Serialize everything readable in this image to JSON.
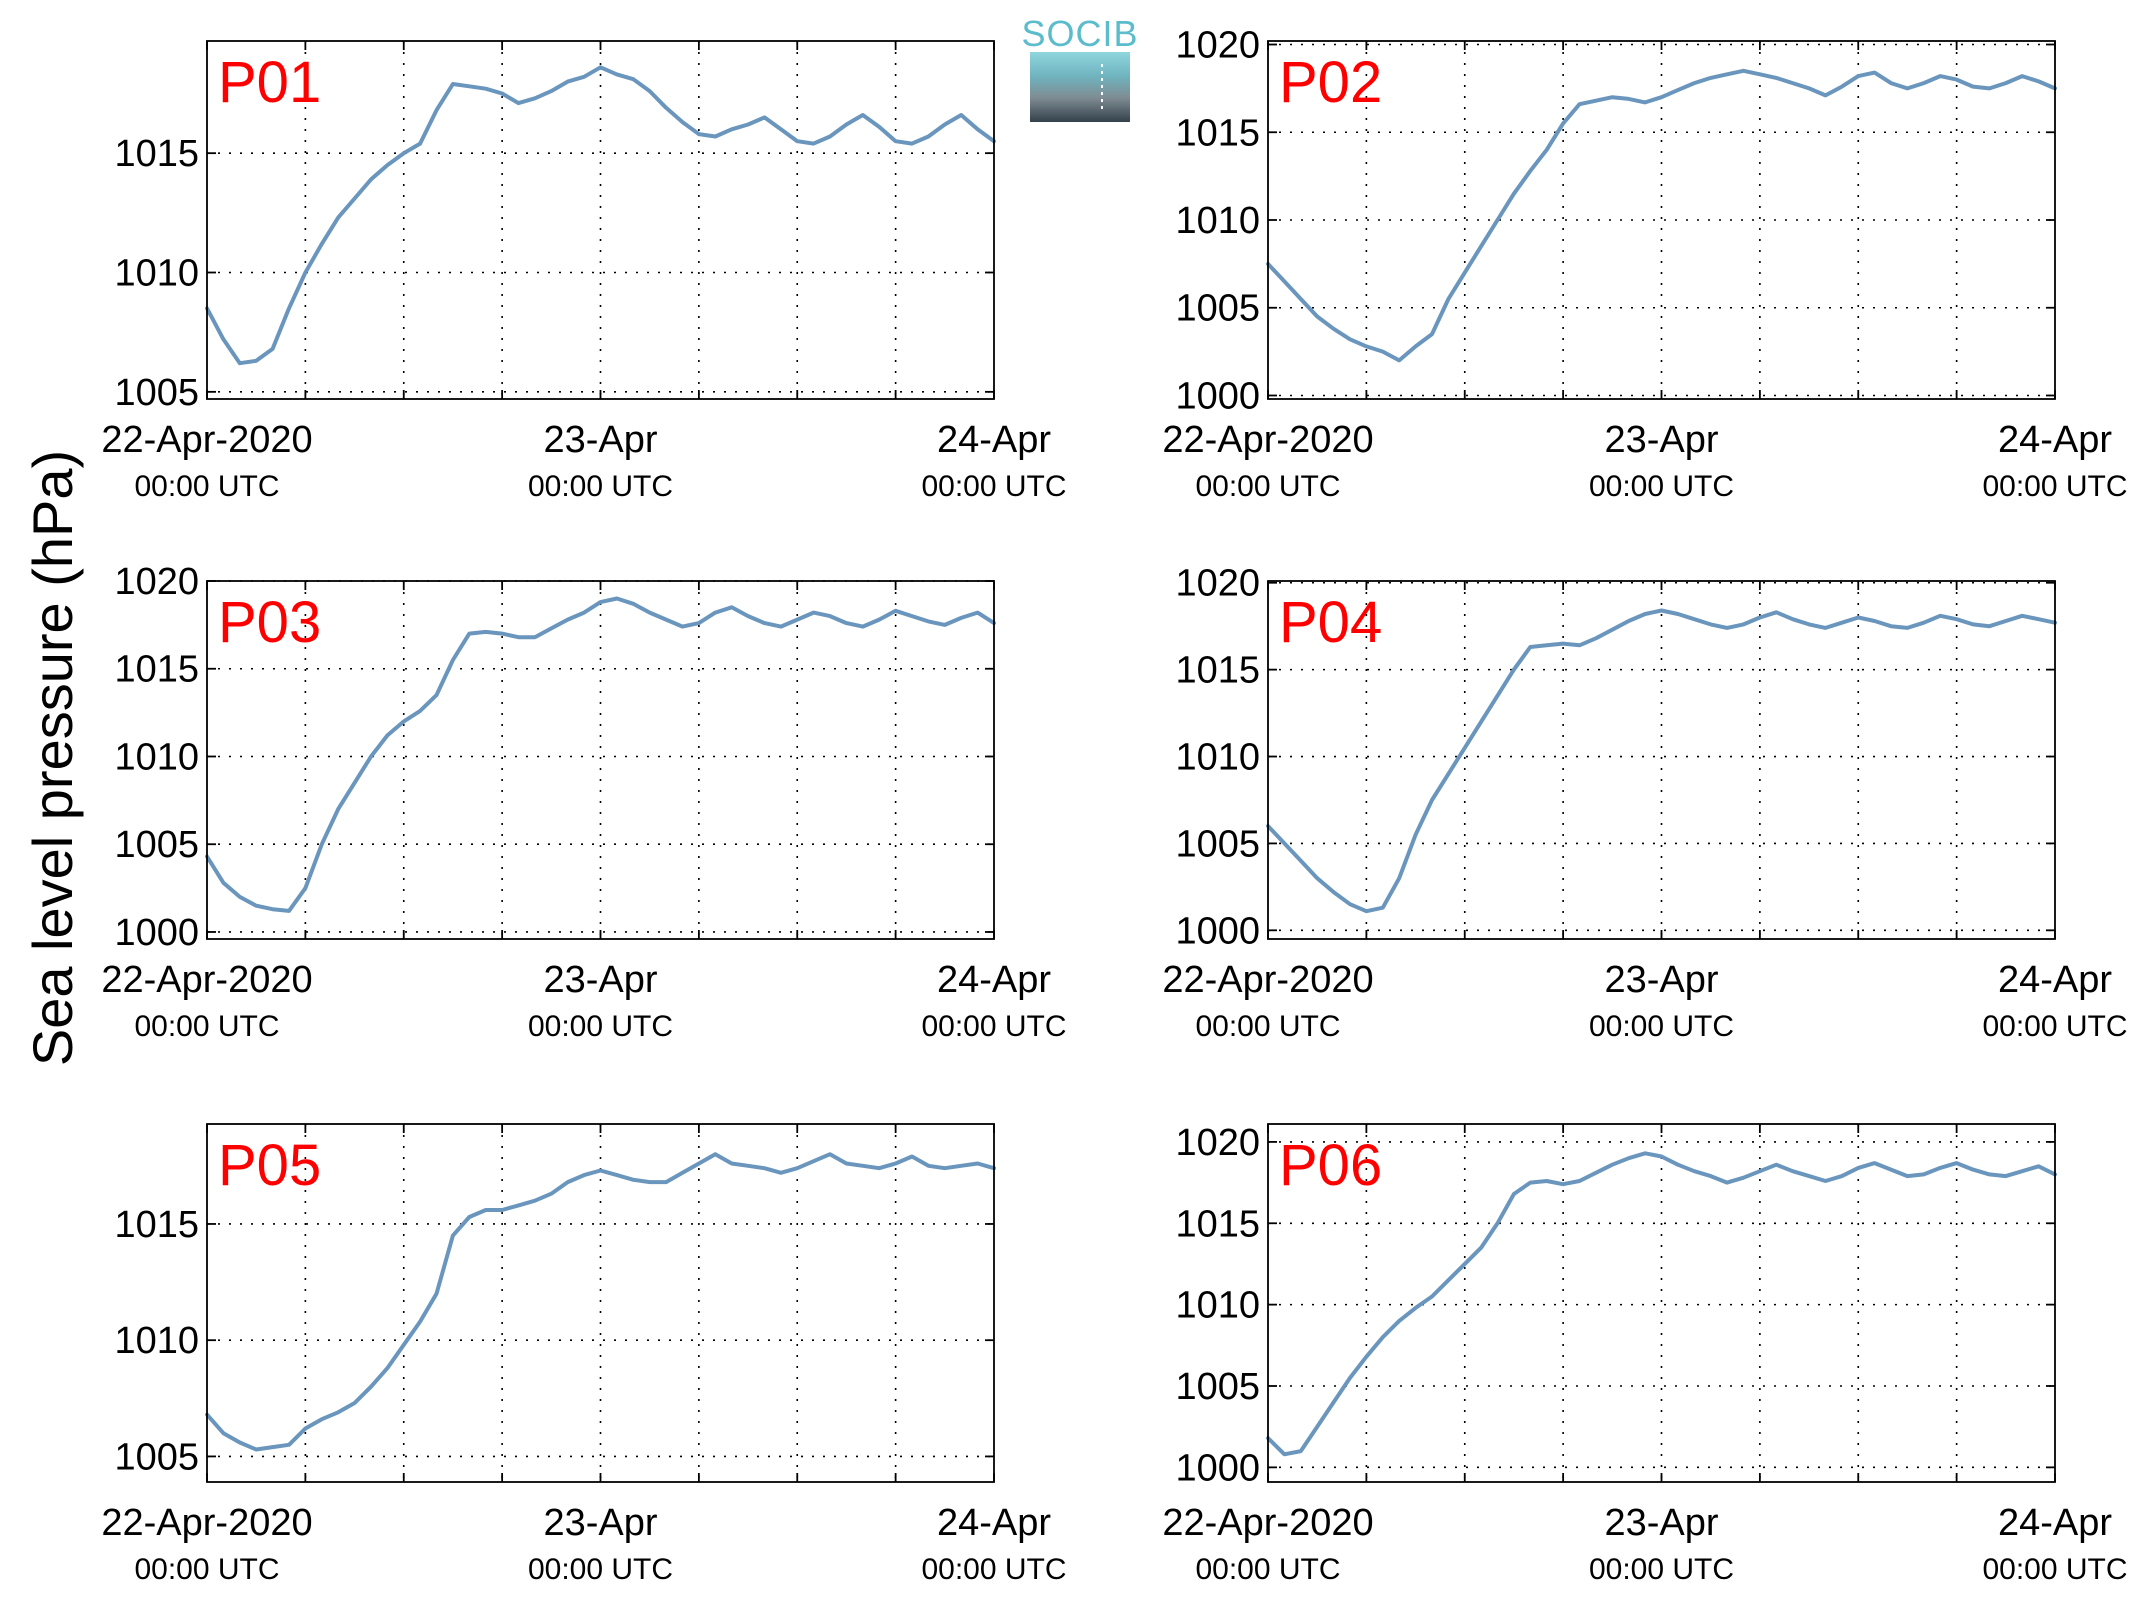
{
  "figure": {
    "ylabel": "Sea level pressure (hPa)",
    "logo_text": "SOCIB",
    "line_color": "#6a96bd",
    "label_color": "#ff0000"
  },
  "chart_data": [
    {
      "type": "line",
      "label": "P01",
      "x_ticks": [
        {
          "value": 0,
          "date": "22-Apr-2020",
          "time": "00:00 UTC"
        },
        {
          "value": 24,
          "date": "23-Apr",
          "time": "00:00 UTC"
        },
        {
          "value": 48,
          "date": "24-Apr",
          "time": "00:00 UTC"
        }
      ],
      "xlim": [
        0,
        48
      ],
      "ylim": [
        1004.7,
        1019.7
      ],
      "yticks": [
        1005,
        1010,
        1015
      ],
      "grid": true,
      "series": [
        {
          "x": [
            0,
            1,
            2,
            3,
            4,
            5,
            6,
            7,
            8,
            9,
            10,
            11,
            12,
            13,
            14,
            15,
            16,
            17,
            18,
            19,
            20,
            21,
            22,
            23,
            24,
            25,
            26,
            27,
            28,
            29,
            30,
            31,
            32,
            33,
            34,
            35,
            36,
            37,
            38,
            39,
            40,
            41,
            42,
            43,
            44,
            45,
            46,
            47,
            48
          ],
          "values": [
            1008.5,
            1007.2,
            1006.2,
            1006.3,
            1006.8,
            1008.5,
            1010.0,
            1011.2,
            1012.3,
            1013.1,
            1013.9,
            1014.5,
            1015.0,
            1015.4,
            1016.8,
            1017.9,
            1017.8,
            1017.7,
            1017.5,
            1017.1,
            1017.3,
            1017.6,
            1018.0,
            1018.2,
            1018.6,
            1018.3,
            1018.1,
            1017.6,
            1016.9,
            1016.3,
            1015.8,
            1015.7,
            1016.0,
            1016.2,
            1016.5,
            1016.0,
            1015.5,
            1015.4,
            1015.7,
            1016.2,
            1016.6,
            1016.1,
            1015.5,
            1015.4,
            1015.7,
            1016.2,
            1016.6,
            1016.0,
            1015.5
          ]
        }
      ]
    },
    {
      "type": "line",
      "label": "P02",
      "x_ticks": [
        {
          "value": 0,
          "date": "22-Apr-2020",
          "time": "00:00 UTC"
        },
        {
          "value": 24,
          "date": "23-Apr",
          "time": "00:00 UTC"
        },
        {
          "value": 48,
          "date": "24-Apr",
          "time": "00:00 UTC"
        }
      ],
      "xlim": [
        0,
        48
      ],
      "ylim": [
        999.8,
        1020.2
      ],
      "yticks": [
        1000,
        1005,
        1010,
        1015,
        1020
      ],
      "grid": true,
      "series": [
        {
          "x": [
            0,
            1,
            2,
            3,
            4,
            5,
            6,
            7,
            8,
            9,
            10,
            11,
            12,
            13,
            14,
            15,
            16,
            17,
            18,
            19,
            20,
            21,
            22,
            23,
            24,
            25,
            26,
            27,
            28,
            29,
            30,
            31,
            32,
            33,
            34,
            35,
            36,
            37,
            38,
            39,
            40,
            41,
            42,
            43,
            44,
            45,
            46,
            47,
            48
          ],
          "values": [
            1007.5,
            1006.5,
            1005.5,
            1004.5,
            1003.8,
            1003.2,
            1002.8,
            1002.5,
            1002.0,
            1002.8,
            1003.5,
            1005.5,
            1007.0,
            1008.5,
            1010.0,
            1011.5,
            1012.8,
            1014.0,
            1015.5,
            1016.6,
            1016.8,
            1017.0,
            1016.9,
            1016.7,
            1017.0,
            1017.4,
            1017.8,
            1018.1,
            1018.3,
            1018.5,
            1018.3,
            1018.1,
            1017.8,
            1017.5,
            1017.1,
            1017.6,
            1018.2,
            1018.4,
            1017.8,
            1017.5,
            1017.8,
            1018.2,
            1018.0,
            1017.6,
            1017.5,
            1017.8,
            1018.2,
            1017.9,
            1017.5
          ]
        }
      ]
    },
    {
      "type": "line",
      "label": "P03",
      "x_ticks": [
        {
          "value": 0,
          "date": "22-Apr-2020",
          "time": "00:00 UTC"
        },
        {
          "value": 24,
          "date": "23-Apr",
          "time": "00:00 UTC"
        },
        {
          "value": 48,
          "date": "24-Apr",
          "time": "00:00 UTC"
        }
      ],
      "xlim": [
        0,
        48
      ],
      "ylim": [
        999.6,
        1020.0
      ],
      "yticks": [
        1000,
        1005,
        1010,
        1015,
        1020
      ],
      "grid": true,
      "series": [
        {
          "x": [
            0,
            1,
            2,
            3,
            4,
            5,
            6,
            7,
            8,
            9,
            10,
            11,
            12,
            13,
            14,
            15,
            16,
            17,
            18,
            19,
            20,
            21,
            22,
            23,
            24,
            25,
            26,
            27,
            28,
            29,
            30,
            31,
            32,
            33,
            34,
            35,
            36,
            37,
            38,
            39,
            40,
            41,
            42,
            43,
            44,
            45,
            46,
            47,
            48
          ],
          "values": [
            1004.3,
            1002.8,
            1002.0,
            1001.5,
            1001.3,
            1001.2,
            1002.5,
            1005.0,
            1007.0,
            1008.5,
            1010.0,
            1011.2,
            1012.0,
            1012.6,
            1013.5,
            1015.5,
            1017.0,
            1017.1,
            1017.0,
            1016.8,
            1016.8,
            1017.3,
            1017.8,
            1018.2,
            1018.8,
            1019.0,
            1018.7,
            1018.2,
            1017.8,
            1017.4,
            1017.6,
            1018.2,
            1018.5,
            1018.0,
            1017.6,
            1017.4,
            1017.8,
            1018.2,
            1018.0,
            1017.6,
            1017.4,
            1017.8,
            1018.3,
            1018.0,
            1017.7,
            1017.5,
            1017.9,
            1018.2,
            1017.6
          ]
        }
      ]
    },
    {
      "type": "line",
      "label": "P04",
      "x_ticks": [
        {
          "value": 0,
          "date": "22-Apr-2020",
          "time": "00:00 UTC"
        },
        {
          "value": 24,
          "date": "23-Apr",
          "time": "00:00 UTC"
        },
        {
          "value": 48,
          "date": "24-Apr",
          "time": "00:00 UTC"
        }
      ],
      "xlim": [
        0,
        48
      ],
      "ylim": [
        999.5,
        1020.1
      ],
      "yticks": [
        1000,
        1005,
        1010,
        1015,
        1020
      ],
      "grid": true,
      "series": [
        {
          "x": [
            0,
            1,
            2,
            3,
            4,
            5,
            6,
            7,
            8,
            9,
            10,
            11,
            12,
            13,
            14,
            15,
            16,
            17,
            18,
            19,
            20,
            21,
            22,
            23,
            24,
            25,
            26,
            27,
            28,
            29,
            30,
            31,
            32,
            33,
            34,
            35,
            36,
            37,
            38,
            39,
            40,
            41,
            42,
            43,
            44,
            45,
            46,
            47,
            48
          ],
          "values": [
            1006.0,
            1005.0,
            1004.0,
            1003.0,
            1002.2,
            1001.5,
            1001.1,
            1001.3,
            1003.0,
            1005.5,
            1007.5,
            1009.0,
            1010.5,
            1012.0,
            1013.5,
            1015.0,
            1016.3,
            1016.4,
            1016.5,
            1016.4,
            1016.8,
            1017.3,
            1017.8,
            1018.2,
            1018.4,
            1018.2,
            1017.9,
            1017.6,
            1017.4,
            1017.6,
            1018.0,
            1018.3,
            1017.9,
            1017.6,
            1017.4,
            1017.7,
            1018.0,
            1017.8,
            1017.5,
            1017.4,
            1017.7,
            1018.1,
            1017.9,
            1017.6,
            1017.5,
            1017.8,
            1018.1,
            1017.9,
            1017.7
          ]
        }
      ]
    },
    {
      "type": "line",
      "label": "P05",
      "x_ticks": [
        {
          "value": 0,
          "date": "22-Apr-2020",
          "time": "00:00 UTC"
        },
        {
          "value": 24,
          "date": "23-Apr",
          "time": "00:00 UTC"
        },
        {
          "value": 48,
          "date": "24-Apr",
          "time": "00:00 UTC"
        }
      ],
      "xlim": [
        0,
        48
      ],
      "ylim": [
        1003.9,
        1019.3
      ],
      "yticks": [
        1005,
        1010,
        1015
      ],
      "grid": true,
      "series": [
        {
          "x": [
            0,
            1,
            2,
            3,
            4,
            5,
            6,
            7,
            8,
            9,
            10,
            11,
            12,
            13,
            14,
            15,
            16,
            17,
            18,
            19,
            20,
            21,
            22,
            23,
            24,
            25,
            26,
            27,
            28,
            29,
            30,
            31,
            32,
            33,
            34,
            35,
            36,
            37,
            38,
            39,
            40,
            41,
            42,
            43,
            44,
            45,
            46,
            47,
            48
          ],
          "values": [
            1006.8,
            1006.0,
            1005.6,
            1005.3,
            1005.4,
            1005.5,
            1006.2,
            1006.6,
            1006.9,
            1007.3,
            1008.0,
            1008.8,
            1009.8,
            1010.8,
            1012.0,
            1014.5,
            1015.3,
            1015.6,
            1015.6,
            1015.8,
            1016.0,
            1016.3,
            1016.8,
            1017.1,
            1017.3,
            1017.1,
            1016.9,
            1016.8,
            1016.8,
            1017.2,
            1017.6,
            1018.0,
            1017.6,
            1017.5,
            1017.4,
            1017.2,
            1017.4,
            1017.7,
            1018.0,
            1017.6,
            1017.5,
            1017.4,
            1017.6,
            1017.9,
            1017.5,
            1017.4,
            1017.5,
            1017.6,
            1017.4
          ]
        }
      ]
    },
    {
      "type": "line",
      "label": "P06",
      "x_ticks": [
        {
          "value": 0,
          "date": "22-Apr-2020",
          "time": "00:00 UTC"
        },
        {
          "value": 24,
          "date": "23-Apr",
          "time": "00:00 UTC"
        },
        {
          "value": 48,
          "date": "24-Apr",
          "time": "00:00 UTC"
        }
      ],
      "xlim": [
        0,
        48
      ],
      "ylim": [
        999.1,
        1021.1
      ],
      "yticks": [
        1000,
        1005,
        1010,
        1015,
        1020
      ],
      "grid": true,
      "series": [
        {
          "x": [
            0,
            1,
            2,
            3,
            4,
            5,
            6,
            7,
            8,
            9,
            10,
            11,
            12,
            13,
            14,
            15,
            16,
            17,
            18,
            19,
            20,
            21,
            22,
            23,
            24,
            25,
            26,
            27,
            28,
            29,
            30,
            31,
            32,
            33,
            34,
            35,
            36,
            37,
            38,
            39,
            40,
            41,
            42,
            43,
            44,
            45,
            46,
            47,
            48
          ],
          "values": [
            1001.8,
            1000.8,
            1001.0,
            1002.5,
            1004.0,
            1005.5,
            1006.8,
            1008.0,
            1009.0,
            1009.8,
            1010.5,
            1011.5,
            1012.5,
            1013.5,
            1015.0,
            1016.8,
            1017.5,
            1017.6,
            1017.4,
            1017.6,
            1018.1,
            1018.6,
            1019.0,
            1019.3,
            1019.1,
            1018.6,
            1018.2,
            1017.9,
            1017.5,
            1017.8,
            1018.2,
            1018.6,
            1018.2,
            1017.9,
            1017.6,
            1017.9,
            1018.4,
            1018.7,
            1018.3,
            1017.9,
            1018.0,
            1018.4,
            1018.7,
            1018.3,
            1018.0,
            1017.9,
            1018.2,
            1018.5,
            1018.0
          ]
        }
      ]
    }
  ]
}
